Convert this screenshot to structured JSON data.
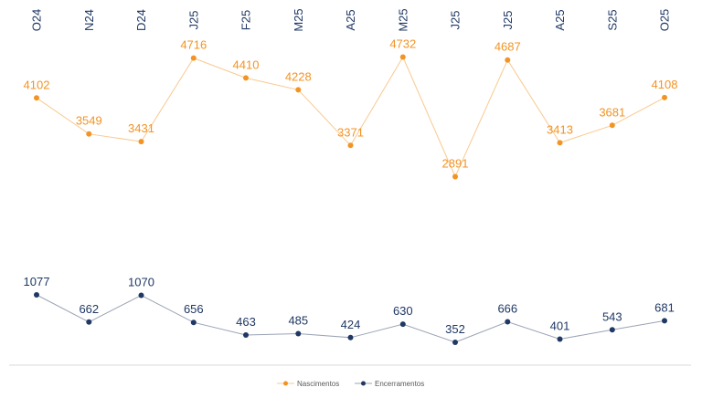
{
  "chart_data": {
    "type": "line",
    "categories": [
      "O24",
      "N24",
      "D24",
      "J25",
      "F25",
      "M25",
      "A25",
      "M25",
      "J25",
      "J25",
      "A25",
      "S25",
      "O25"
    ],
    "series": [
      {
        "name": "Nascimentos",
        "color": "#f29425",
        "values": [
          4102,
          3549,
          3431,
          4716,
          4410,
          4228,
          3371,
          4732,
          2891,
          4687,
          3413,
          3681,
          4108
        ]
      },
      {
        "name": "Encerramentos",
        "color": "#1f3864",
        "values": [
          1077,
          662,
          1070,
          656,
          463,
          485,
          424,
          630,
          352,
          666,
          401,
          543,
          681
        ]
      }
    ],
    "title": "",
    "xlabel": "",
    "ylabel": "",
    "x_axis_position": "top",
    "grid": false,
    "legend_position": "bottom-center",
    "line_colors": {
      "nascimentos_line": "#f9c98f",
      "encerramentos_line": "#9aa3b5"
    }
  }
}
